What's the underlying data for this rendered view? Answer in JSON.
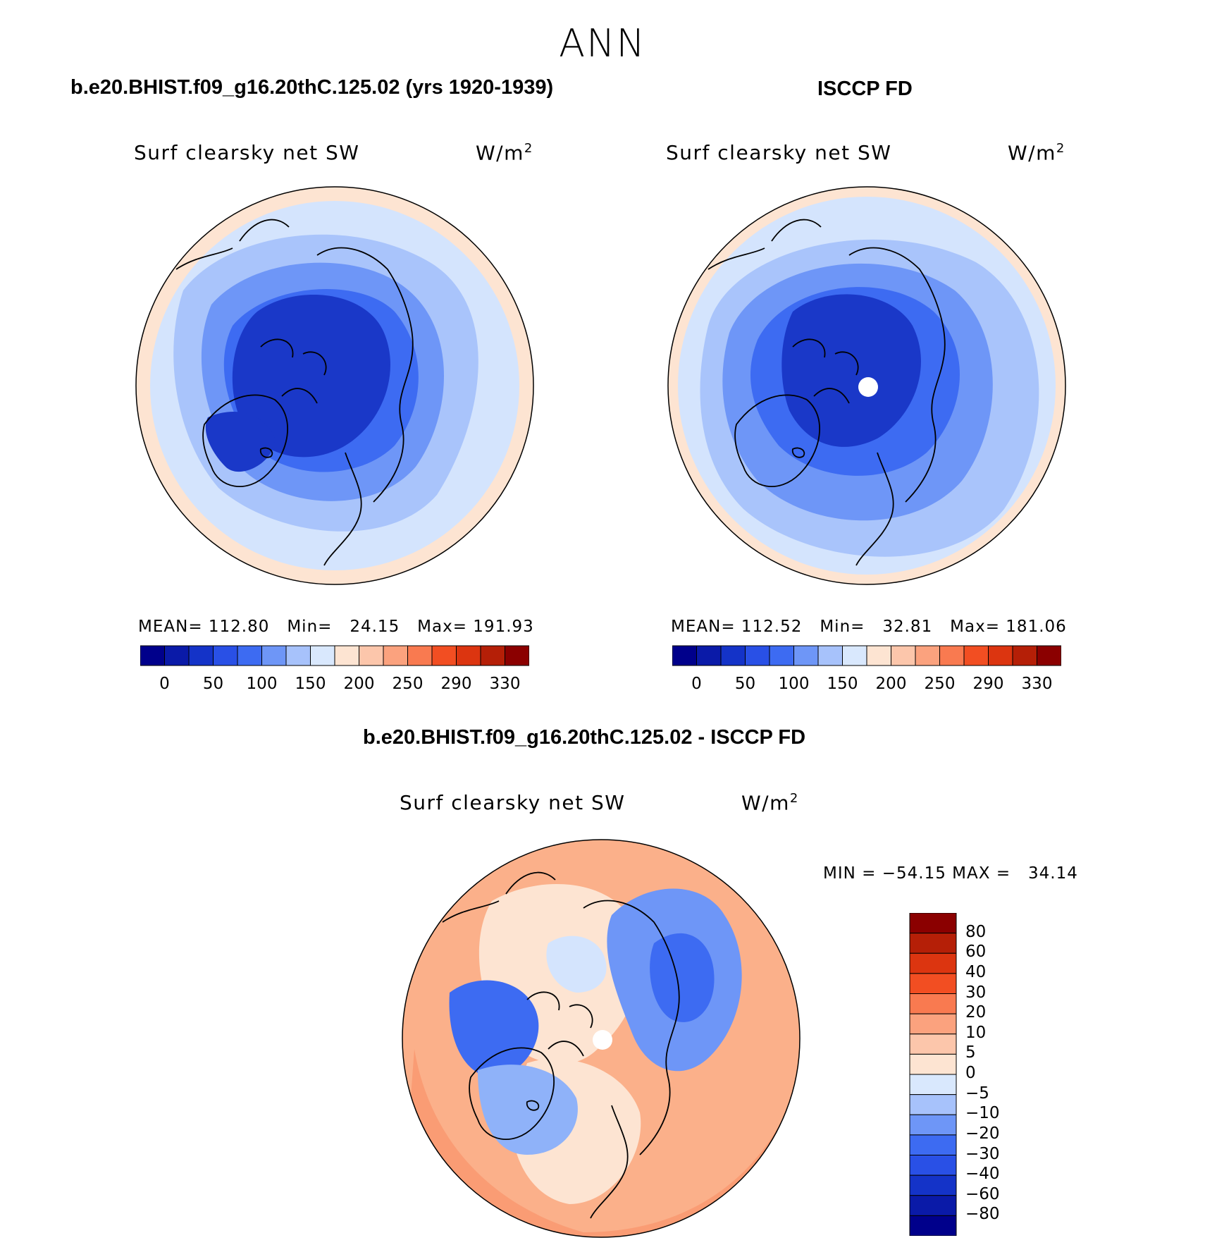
{
  "figure": {
    "season": "ANN"
  },
  "panels": {
    "model": {
      "title": "b.e20.BHIST.f09_g16.20thC.125.02 (yrs 1920-1939)",
      "variable": "Surf clearsky net SW",
      "units_base": "W/m",
      "units_exp": "2",
      "mean_label": "MEAN=",
      "mean": "112.80",
      "min_label": "Min=",
      "min": "24.15",
      "max_label": "Max=",
      "max": "191.93"
    },
    "obs": {
      "title": "ISCCP FD",
      "variable": "Surf clearsky net SW",
      "units_base": "W/m",
      "units_exp": "2",
      "mean_label": "MEAN=",
      "mean": "112.52",
      "min_label": "Min=",
      "min": "32.81",
      "max_label": "Max=",
      "max": "181.06"
    },
    "diff": {
      "title": "b.e20.BHIST.f09_g16.20thC.125.02 - ISCCP FD",
      "variable": "Surf clearsky net SW",
      "units_base": "W/m",
      "units_exp": "2",
      "min_label": "MIN =",
      "min": "−54.15",
      "max_label": "MAX =",
      "max": "34.14"
    }
  },
  "colorbars": {
    "field": {
      "colors": [
        "#00008b",
        "#0a1aa8",
        "#1433c8",
        "#2950e6",
        "#3d6bf2",
        "#6e96f7",
        "#a7c2fb",
        "#d9e8fd",
        "#fde4d2",
        "#fcc6ab",
        "#fba27e",
        "#f97a50",
        "#f24e22",
        "#dc3510",
        "#b51f07",
        "#8b0000"
      ],
      "tick_labels": [
        "0",
        "50",
        "100",
        "150",
        "200",
        "250",
        "290",
        "330"
      ]
    },
    "diff": {
      "colors": [
        "#00008b",
        "#0a1aa8",
        "#1433c8",
        "#2950e6",
        "#3d6bf2",
        "#6e96f7",
        "#a7c2fb",
        "#d9e8fd",
        "#fde4d2",
        "#fcc6ab",
        "#fba27e",
        "#f97a50",
        "#f24e22",
        "#dc3510",
        "#b51f07",
        "#8b0000"
      ],
      "tick_labels": [
        "80",
        "60",
        "40",
        "30",
        "20",
        "10",
        "5",
        "0",
        "−5",
        "−10",
        "−20",
        "−30",
        "−40",
        "−60",
        "−80"
      ]
    }
  },
  "colors": {
    "deep_blue": "#1a38c8",
    "mid_blue": "#3f6ef0",
    "light_blue": "#8fb2f9",
    "pale_blue": "#d4e4fd",
    "peach": "#fde4d2",
    "salmon": "#fbb08a",
    "orange": "#f98d62",
    "coast": "#000000"
  }
}
